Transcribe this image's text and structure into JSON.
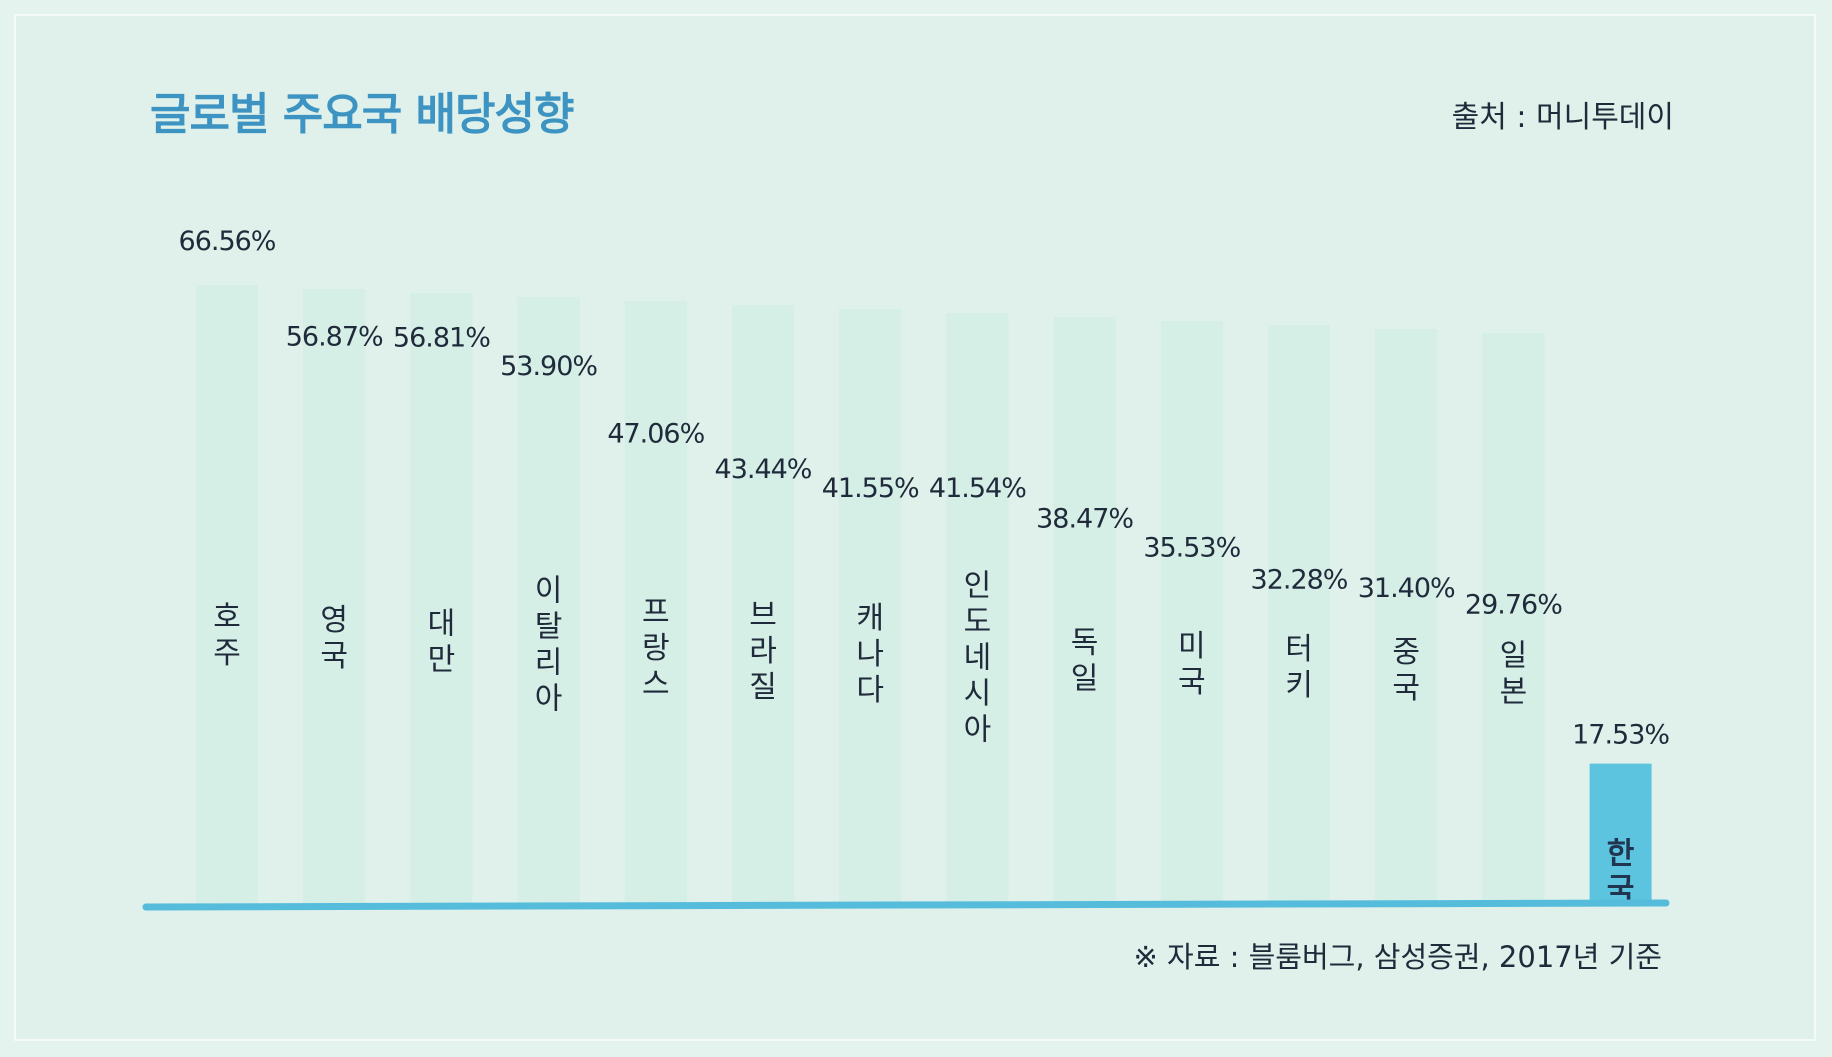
{
  "title": "글로벌 주요국 배당성향",
  "source": "출처 : 머니투데이",
  "footnote": "※ 자료 : 블룸버그, 삼성증권, 2017년 기준",
  "colors": {
    "background": "#dff1ea",
    "title": "#3d93c2",
    "bar_faded": "#d2ece4",
    "bar_highlight": "#5cc4de",
    "baseline": "#56bcdc",
    "text": "#1f2a3a"
  },
  "chart_data": {
    "type": "bar",
    "title": "글로벌 주요국 배당성향",
    "categories": [
      "호주",
      "영국",
      "대만",
      "이탈리아",
      "프랑스",
      "브라질",
      "캐나다",
      "인도네시아",
      "독일",
      "미국",
      "터키",
      "중국",
      "일본",
      "한국"
    ],
    "values": [
      66.56,
      56.87,
      56.81,
      53.9,
      47.06,
      43.44,
      41.55,
      41.54,
      38.47,
      35.53,
      32.28,
      31.4,
      29.76,
      17.53
    ],
    "value_labels": [
      "66.56%",
      "56.87%",
      "56.81%",
      "53.90%",
      "47.06%",
      "43.44%",
      "41.55%",
      "41.54%",
      "38.47%",
      "35.53%",
      "32.28%",
      "31.40%",
      "29.76%",
      "17.53%"
    ],
    "highlight": "한국",
    "unit": "%",
    "ylim": [
      0,
      75
    ],
    "grid": false,
    "legend": "none"
  }
}
